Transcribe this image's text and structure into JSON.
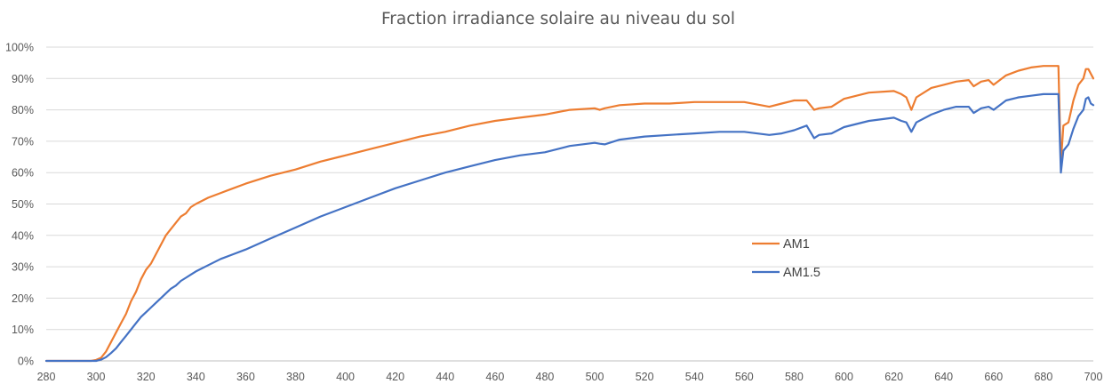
{
  "chart_data": {
    "type": "line",
    "title": "Fraction irradiance solaire au niveau du sol",
    "xlabel": "",
    "ylabel": "",
    "xlim": [
      280,
      700
    ],
    "ylim": [
      0,
      1
    ],
    "x_ticks": [
      "280",
      "300",
      "320",
      "340",
      "360",
      "380",
      "400",
      "420",
      "440",
      "460",
      "480",
      "500",
      "520",
      "540",
      "560",
      "580",
      "600",
      "620",
      "640",
      "660",
      "680",
      "700"
    ],
    "y_ticks": [
      "0%",
      "10%",
      "20%",
      "30%",
      "40%",
      "50%",
      "60%",
      "70%",
      "80%",
      "90%",
      "100%"
    ],
    "grid": true,
    "legend_position": "right",
    "series": [
      {
        "name": "AM1",
        "color": "#ED7D31",
        "points": [
          [
            280,
            0.0
          ],
          [
            298,
            0.0
          ],
          [
            300,
            0.003
          ],
          [
            302,
            0.01
          ],
          [
            304,
            0.03
          ],
          [
            306,
            0.06
          ],
          [
            308,
            0.09
          ],
          [
            310,
            0.12
          ],
          [
            312,
            0.15
          ],
          [
            314,
            0.19
          ],
          [
            316,
            0.22
          ],
          [
            318,
            0.26
          ],
          [
            320,
            0.29
          ],
          [
            322,
            0.31
          ],
          [
            324,
            0.34
          ],
          [
            326,
            0.37
          ],
          [
            328,
            0.4
          ],
          [
            330,
            0.42
          ],
          [
            332,
            0.44
          ],
          [
            334,
            0.46
          ],
          [
            336,
            0.47
          ],
          [
            338,
            0.49
          ],
          [
            340,
            0.5
          ],
          [
            345,
            0.52
          ],
          [
            350,
            0.535
          ],
          [
            355,
            0.55
          ],
          [
            360,
            0.565
          ],
          [
            370,
            0.59
          ],
          [
            380,
            0.61
          ],
          [
            390,
            0.635
          ],
          [
            400,
            0.655
          ],
          [
            410,
            0.675
          ],
          [
            420,
            0.695
          ],
          [
            430,
            0.715
          ],
          [
            440,
            0.73
          ],
          [
            450,
            0.75
          ],
          [
            460,
            0.765
          ],
          [
            470,
            0.775
          ],
          [
            480,
            0.785
          ],
          [
            490,
            0.8
          ],
          [
            500,
            0.805
          ],
          [
            502,
            0.8
          ],
          [
            504,
            0.805
          ],
          [
            510,
            0.815
          ],
          [
            520,
            0.82
          ],
          [
            530,
            0.82
          ],
          [
            540,
            0.825
          ],
          [
            550,
            0.825
          ],
          [
            560,
            0.825
          ],
          [
            570,
            0.81
          ],
          [
            575,
            0.82
          ],
          [
            580,
            0.83
          ],
          [
            585,
            0.83
          ],
          [
            588,
            0.8
          ],
          [
            590,
            0.805
          ],
          [
            595,
            0.81
          ],
          [
            600,
            0.835
          ],
          [
            605,
            0.845
          ],
          [
            610,
            0.855
          ],
          [
            620,
            0.86
          ],
          [
            623,
            0.85
          ],
          [
            625,
            0.84
          ],
          [
            627,
            0.8
          ],
          [
            629,
            0.84
          ],
          [
            635,
            0.87
          ],
          [
            640,
            0.88
          ],
          [
            645,
            0.89
          ],
          [
            650,
            0.895
          ],
          [
            652,
            0.875
          ],
          [
            655,
            0.89
          ],
          [
            658,
            0.895
          ],
          [
            660,
            0.88
          ],
          [
            665,
            0.91
          ],
          [
            670,
            0.925
          ],
          [
            675,
            0.935
          ],
          [
            680,
            0.94
          ],
          [
            686,
            0.94
          ],
          [
            687,
            0.63
          ],
          [
            688,
            0.75
          ],
          [
            690,
            0.76
          ],
          [
            692,
            0.83
          ],
          [
            694,
            0.88
          ],
          [
            696,
            0.9
          ],
          [
            697,
            0.93
          ],
          [
            698,
            0.93
          ],
          [
            699,
            0.915
          ],
          [
            700,
            0.9
          ]
        ]
      },
      {
        "name": "AM1.5",
        "color": "#4472C4",
        "points": [
          [
            280,
            0.0
          ],
          [
            300,
            0.0
          ],
          [
            302,
            0.004
          ],
          [
            304,
            0.012
          ],
          [
            306,
            0.025
          ],
          [
            308,
            0.04
          ],
          [
            310,
            0.06
          ],
          [
            312,
            0.08
          ],
          [
            314,
            0.1
          ],
          [
            316,
            0.12
          ],
          [
            318,
            0.14
          ],
          [
            320,
            0.155
          ],
          [
            322,
            0.17
          ],
          [
            324,
            0.185
          ],
          [
            326,
            0.2
          ],
          [
            328,
            0.215
          ],
          [
            330,
            0.23
          ],
          [
            332,
            0.24
          ],
          [
            334,
            0.255
          ],
          [
            336,
            0.265
          ],
          [
            338,
            0.275
          ],
          [
            340,
            0.285
          ],
          [
            345,
            0.305
          ],
          [
            350,
            0.325
          ],
          [
            355,
            0.34
          ],
          [
            360,
            0.355
          ],
          [
            370,
            0.39
          ],
          [
            380,
            0.425
          ],
          [
            390,
            0.46
          ],
          [
            400,
            0.49
          ],
          [
            410,
            0.52
          ],
          [
            420,
            0.55
          ],
          [
            430,
            0.575
          ],
          [
            440,
            0.6
          ],
          [
            450,
            0.62
          ],
          [
            460,
            0.64
          ],
          [
            470,
            0.655
          ],
          [
            480,
            0.665
          ],
          [
            490,
            0.685
          ],
          [
            500,
            0.695
          ],
          [
            502,
            0.692
          ],
          [
            504,
            0.69
          ],
          [
            510,
            0.705
          ],
          [
            520,
            0.715
          ],
          [
            530,
            0.72
          ],
          [
            540,
            0.725
          ],
          [
            550,
            0.73
          ],
          [
            560,
            0.73
          ],
          [
            570,
            0.72
          ],
          [
            575,
            0.725
          ],
          [
            580,
            0.735
          ],
          [
            585,
            0.75
          ],
          [
            588,
            0.71
          ],
          [
            590,
            0.72
          ],
          [
            595,
            0.725
          ],
          [
            600,
            0.745
          ],
          [
            605,
            0.755
          ],
          [
            610,
            0.765
          ],
          [
            620,
            0.775
          ],
          [
            623,
            0.765
          ],
          [
            625,
            0.76
          ],
          [
            627,
            0.73
          ],
          [
            629,
            0.76
          ],
          [
            635,
            0.785
          ],
          [
            640,
            0.8
          ],
          [
            645,
            0.81
          ],
          [
            650,
            0.81
          ],
          [
            652,
            0.79
          ],
          [
            655,
            0.805
          ],
          [
            658,
            0.81
          ],
          [
            660,
            0.8
          ],
          [
            665,
            0.83
          ],
          [
            670,
            0.84
          ],
          [
            675,
            0.845
          ],
          [
            680,
            0.85
          ],
          [
            686,
            0.85
          ],
          [
            687,
            0.6
          ],
          [
            688,
            0.67
          ],
          [
            690,
            0.69
          ],
          [
            692,
            0.74
          ],
          [
            694,
            0.78
          ],
          [
            696,
            0.8
          ],
          [
            697,
            0.835
          ],
          [
            698,
            0.84
          ],
          [
            699,
            0.82
          ],
          [
            700,
            0.815
          ]
        ]
      }
    ]
  }
}
